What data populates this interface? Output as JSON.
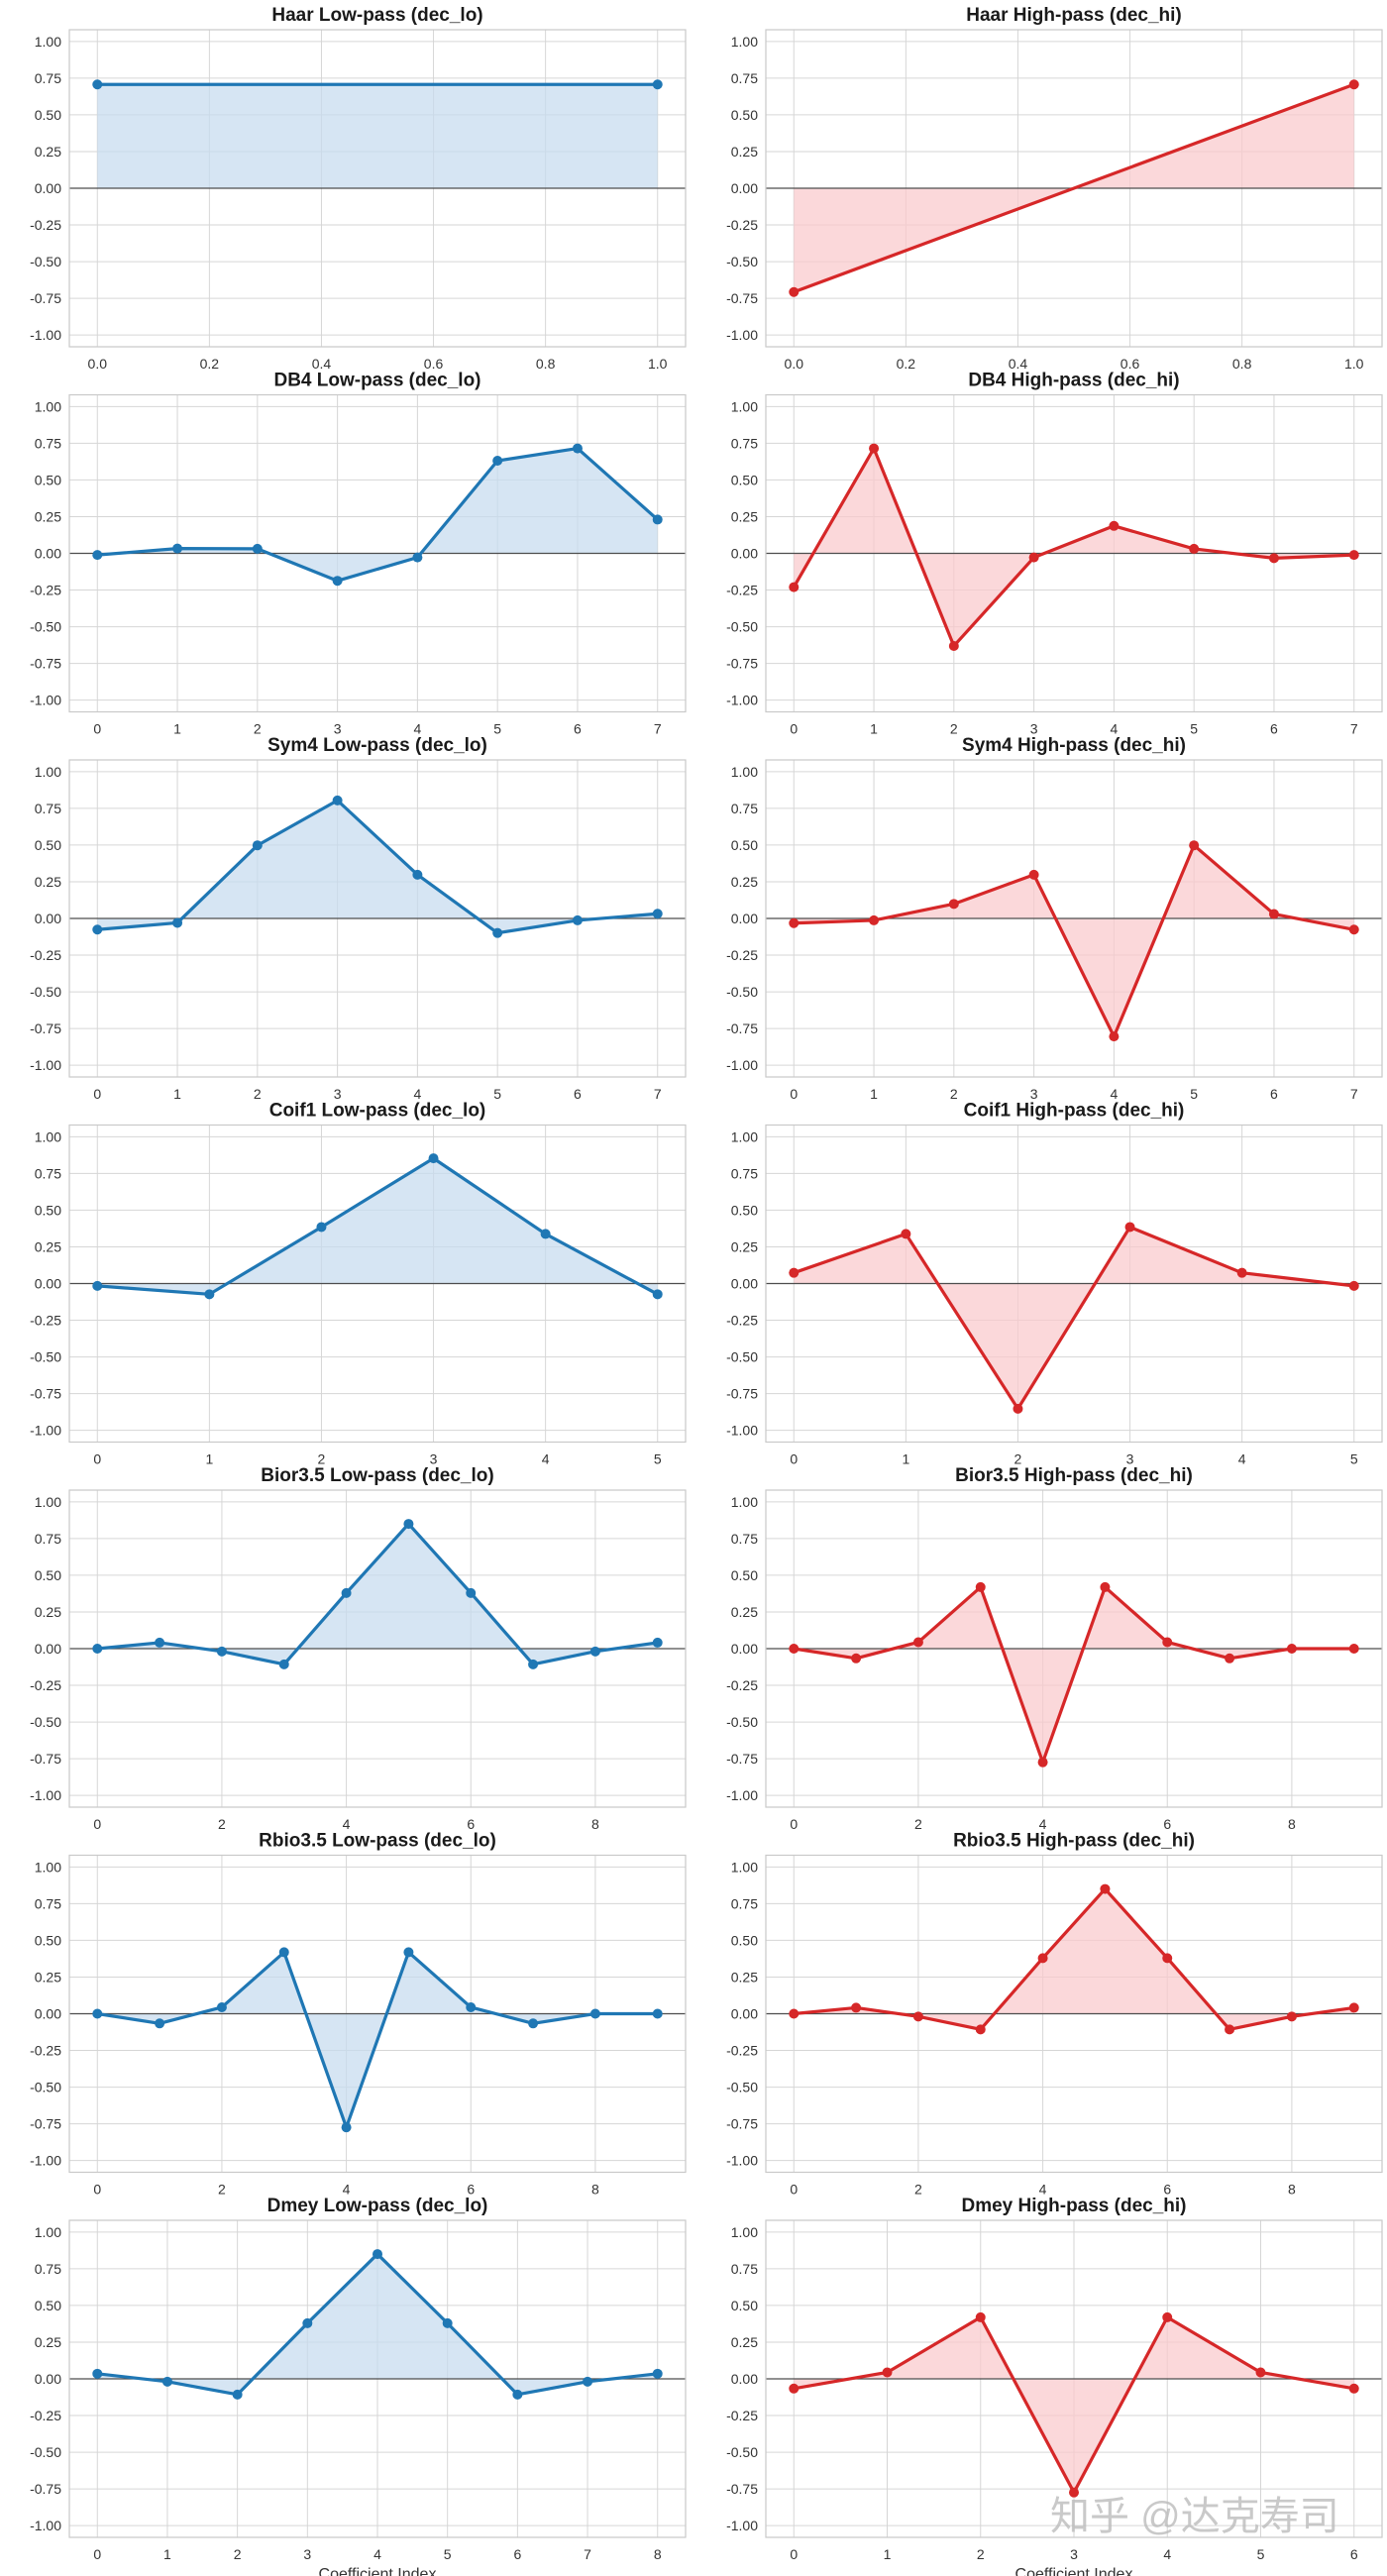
{
  "colors": {
    "low": "#1f77b4",
    "high": "#d62728",
    "lowFill": "#c6dbef",
    "highFill": "#f9c9cc",
    "grid": "#d6d6d6",
    "zero": "#4d4d4d",
    "frame": "#c9c9c9"
  },
  "watermark": "知乎 @达克寿司",
  "chart_data": [
    {
      "type": "line",
      "title": "Haar Low-pass (dec_lo)",
      "series": "low",
      "x": [
        0,
        1
      ],
      "values": [
        0.707,
        0.707
      ],
      "xticks": [
        0,
        0.2,
        0.4,
        0.6,
        0.8,
        1.0
      ],
      "xticklabels": [
        "0.0",
        "0.2",
        "0.4",
        "0.6",
        "0.8",
        "1.0"
      ],
      "xlim": [
        -0.05,
        1.05
      ],
      "ylim": [
        -1.08,
        1.08
      ],
      "yticks": [
        -1.0,
        -0.75,
        -0.5,
        -0.25,
        0.0,
        0.25,
        0.5,
        0.75,
        1.0
      ],
      "yticklabels": [
        "-1.00",
        "-0.75",
        "-0.50",
        "-0.25",
        "0.00",
        "0.25",
        "0.50",
        "0.75",
        "1.00"
      ],
      "xlabel": ""
    },
    {
      "type": "line",
      "title": "Haar High-pass (dec_hi)",
      "series": "high",
      "x": [
        0,
        1
      ],
      "values": [
        -0.707,
        0.707
      ],
      "xticks": [
        0,
        0.2,
        0.4,
        0.6,
        0.8,
        1.0
      ],
      "xticklabels": [
        "0.0",
        "0.2",
        "0.4",
        "0.6",
        "0.8",
        "1.0"
      ],
      "xlim": [
        -0.05,
        1.05
      ],
      "ylim": [
        -1.08,
        1.08
      ],
      "yticks": [
        -1.0,
        -0.75,
        -0.5,
        -0.25,
        0.0,
        0.25,
        0.5,
        0.75,
        1.0
      ],
      "yticklabels": [
        "-1.00",
        "-0.75",
        "-0.50",
        "-0.25",
        "0.00",
        "0.25",
        "0.50",
        "0.75",
        "1.00"
      ],
      "xlabel": ""
    },
    {
      "type": "line",
      "title": "DB4 Low-pass (dec_lo)",
      "series": "low",
      "x": [
        0,
        1,
        2,
        3,
        4,
        5,
        6,
        7
      ],
      "values": [
        -0.011,
        0.033,
        0.031,
        -0.187,
        -0.028,
        0.631,
        0.715,
        0.23
      ],
      "xticks": [
        0,
        1,
        2,
        3,
        4,
        5,
        6,
        7
      ],
      "xticklabels": [
        "0",
        "1",
        "2",
        "3",
        "4",
        "5",
        "6",
        "7"
      ],
      "xlim": [
        -0.35,
        7.35
      ],
      "ylim": [
        -1.08,
        1.08
      ],
      "yticks": [
        -1.0,
        -0.75,
        -0.5,
        -0.25,
        0.0,
        0.25,
        0.5,
        0.75,
        1.0
      ],
      "yticklabels": [
        "-1.00",
        "-0.75",
        "-0.50",
        "-0.25",
        "0.00",
        "0.25",
        "0.50",
        "0.75",
        "1.00"
      ],
      "xlabel": ""
    },
    {
      "type": "line",
      "title": "DB4 High-pass (dec_hi)",
      "series": "high",
      "x": [
        0,
        1,
        2,
        3,
        4,
        5,
        6,
        7
      ],
      "values": [
        -0.23,
        0.715,
        -0.631,
        -0.028,
        0.187,
        0.031,
        -0.033,
        -0.011
      ],
      "xticks": [
        0,
        1,
        2,
        3,
        4,
        5,
        6,
        7
      ],
      "xticklabels": [
        "0",
        "1",
        "2",
        "3",
        "4",
        "5",
        "6",
        "7"
      ],
      "xlim": [
        -0.35,
        7.35
      ],
      "ylim": [
        -1.08,
        1.08
      ],
      "yticks": [
        -1.0,
        -0.75,
        -0.5,
        -0.25,
        0.0,
        0.25,
        0.5,
        0.75,
        1.0
      ],
      "yticklabels": [
        "-1.00",
        "-0.75",
        "-0.50",
        "-0.25",
        "0.00",
        "0.25",
        "0.50",
        "0.75",
        "1.00"
      ],
      "xlabel": ""
    },
    {
      "type": "line",
      "title": "Sym4 Low-pass (dec_lo)",
      "series": "low",
      "x": [
        0,
        1,
        2,
        3,
        4,
        5,
        6,
        7
      ],
      "values": [
        -0.076,
        -0.03,
        0.498,
        0.804,
        0.298,
        -0.099,
        -0.013,
        0.032
      ],
      "xticks": [
        0,
        1,
        2,
        3,
        4,
        5,
        6,
        7
      ],
      "xticklabels": [
        "0",
        "1",
        "2",
        "3",
        "4",
        "5",
        "6",
        "7"
      ],
      "xlim": [
        -0.35,
        7.35
      ],
      "ylim": [
        -1.08,
        1.08
      ],
      "yticks": [
        -1.0,
        -0.75,
        -0.5,
        -0.25,
        0.0,
        0.25,
        0.5,
        0.75,
        1.0
      ],
      "yticklabels": [
        "-1.00",
        "-0.75",
        "-0.50",
        "-0.25",
        "0.00",
        "0.25",
        "0.50",
        "0.75",
        "1.00"
      ],
      "xlabel": ""
    },
    {
      "type": "line",
      "title": "Sym4 High-pass (dec_hi)",
      "series": "high",
      "x": [
        0,
        1,
        2,
        3,
        4,
        5,
        6,
        7
      ],
      "values": [
        -0.032,
        -0.013,
        0.099,
        0.298,
        -0.804,
        0.498,
        0.03,
        -0.076
      ],
      "xticks": [
        0,
        1,
        2,
        3,
        4,
        5,
        6,
        7
      ],
      "xticklabels": [
        "0",
        "1",
        "2",
        "3",
        "4",
        "5",
        "6",
        "7"
      ],
      "xlim": [
        -0.35,
        7.35
      ],
      "ylim": [
        -1.08,
        1.08
      ],
      "yticks": [
        -1.0,
        -0.75,
        -0.5,
        -0.25,
        0.0,
        0.25,
        0.5,
        0.75,
        1.0
      ],
      "yticklabels": [
        "-1.00",
        "-0.75",
        "-0.50",
        "-0.25",
        "0.00",
        "0.25",
        "0.50",
        "0.75",
        "1.00"
      ],
      "xlabel": ""
    },
    {
      "type": "line",
      "title": "Coif1 Low-pass (dec_lo)",
      "series": "low",
      "x": [
        0,
        1,
        2,
        3,
        4,
        5
      ],
      "values": [
        -0.016,
        -0.073,
        0.385,
        0.853,
        0.338,
        -0.073
      ],
      "xticks": [
        0,
        1,
        2,
        3,
        4,
        5
      ],
      "xticklabels": [
        "0",
        "1",
        "2",
        "3",
        "4",
        "5"
      ],
      "xlim": [
        -0.25,
        5.25
      ],
      "ylim": [
        -1.08,
        1.08
      ],
      "yticks": [
        -1.0,
        -0.75,
        -0.5,
        -0.25,
        0.0,
        0.25,
        0.5,
        0.75,
        1.0
      ],
      "yticklabels": [
        "-1.00",
        "-0.75",
        "-0.50",
        "-0.25",
        "0.00",
        "0.25",
        "0.50",
        "0.75",
        "1.00"
      ],
      "xlabel": ""
    },
    {
      "type": "line",
      "title": "Coif1 High-pass (dec_hi)",
      "series": "high",
      "x": [
        0,
        1,
        2,
        3,
        4,
        5
      ],
      "values": [
        0.073,
        0.338,
        -0.853,
        0.385,
        0.073,
        -0.016
      ],
      "xticks": [
        0,
        1,
        2,
        3,
        4,
        5
      ],
      "xticklabels": [
        "0",
        "1",
        "2",
        "3",
        "4",
        "5"
      ],
      "xlim": [
        -0.25,
        5.25
      ],
      "ylim": [
        -1.08,
        1.08
      ],
      "yticks": [
        -1.0,
        -0.75,
        -0.5,
        -0.25,
        0.0,
        0.25,
        0.5,
        0.75,
        1.0
      ],
      "yticklabels": [
        "-1.00",
        "-0.75",
        "-0.50",
        "-0.25",
        "0.00",
        "0.25",
        "0.50",
        "0.75",
        "1.00"
      ],
      "xlabel": ""
    },
    {
      "type": "line",
      "title": "Bior3.5 Low-pass (dec_lo)",
      "series": "low",
      "x": [
        0,
        1,
        2,
        3,
        4,
        5,
        6,
        7,
        8,
        9
      ],
      "values": [
        0.0,
        0.041,
        -0.019,
        -0.107,
        0.379,
        0.85,
        0.379,
        -0.107,
        -0.019,
        0.041
      ],
      "xticks": [
        0,
        2,
        4,
        6,
        8
      ],
      "xticklabels": [
        "0",
        "2",
        "4",
        "6",
        "8"
      ],
      "xlim": [
        -0.45,
        9.45
      ],
      "ylim": [
        -1.08,
        1.08
      ],
      "yticks": [
        -1.0,
        -0.75,
        -0.5,
        -0.25,
        0.0,
        0.25,
        0.5,
        0.75,
        1.0
      ],
      "yticklabels": [
        "-1.00",
        "-0.75",
        "-0.50",
        "-0.25",
        "0.00",
        "0.25",
        "0.50",
        "0.75",
        "1.00"
      ],
      "xlabel": ""
    },
    {
      "type": "line",
      "title": "Bior3.5 High-pass (dec_hi)",
      "series": "high",
      "x": [
        0,
        1,
        2,
        3,
        4,
        5,
        6,
        7,
        8,
        9
      ],
      "values": [
        0.0,
        -0.066,
        0.044,
        0.419,
        -0.774,
        0.419,
        0.044,
        -0.066,
        0.0,
        0.0
      ],
      "xticks": [
        0,
        2,
        4,
        6,
        8
      ],
      "xticklabels": [
        "0",
        "2",
        "4",
        "6",
        "8"
      ],
      "xlim": [
        -0.45,
        9.45
      ],
      "ylim": [
        -1.08,
        1.08
      ],
      "yticks": [
        -1.0,
        -0.75,
        -0.5,
        -0.25,
        0.0,
        0.25,
        0.5,
        0.75,
        1.0
      ],
      "yticklabels": [
        "-1.00",
        "-0.75",
        "-0.50",
        "-0.25",
        "0.00",
        "0.25",
        "0.50",
        "0.75",
        "1.00"
      ],
      "xlabel": ""
    },
    {
      "type": "line",
      "title": "Rbio3.5 Low-pass (dec_lo)",
      "series": "low",
      "x": [
        0,
        1,
        2,
        3,
        4,
        5,
        6,
        7,
        8,
        9
      ],
      "values": [
        0.0,
        -0.066,
        0.044,
        0.419,
        -0.774,
        0.419,
        0.044,
        -0.066,
        0.0,
        0.0
      ],
      "xticks": [
        0,
        2,
        4,
        6,
        8
      ],
      "xticklabels": [
        "0",
        "2",
        "4",
        "6",
        "8"
      ],
      "xlim": [
        -0.45,
        9.45
      ],
      "ylim": [
        -1.08,
        1.08
      ],
      "yticks": [
        -1.0,
        -0.75,
        -0.5,
        -0.25,
        0.0,
        0.25,
        0.5,
        0.75,
        1.0
      ],
      "yticklabels": [
        "-1.00",
        "-0.75",
        "-0.50",
        "-0.25",
        "0.00",
        "0.25",
        "0.50",
        "0.75",
        "1.00"
      ],
      "xlabel": ""
    },
    {
      "type": "line",
      "title": "Rbio3.5 High-pass (dec_hi)",
      "series": "high",
      "x": [
        0,
        1,
        2,
        3,
        4,
        5,
        6,
        7,
        8,
        9
      ],
      "values": [
        0.0,
        0.041,
        -0.019,
        -0.107,
        0.379,
        0.85,
        0.379,
        -0.107,
        -0.019,
        0.041
      ],
      "xticks": [
        0,
        2,
        4,
        6,
        8
      ],
      "xticklabels": [
        "0",
        "2",
        "4",
        "6",
        "8"
      ],
      "xlim": [
        -0.45,
        9.45
      ],
      "ylim": [
        -1.08,
        1.08
      ],
      "yticks": [
        -1.0,
        -0.75,
        -0.5,
        -0.25,
        0.0,
        0.25,
        0.5,
        0.75,
        1.0
      ],
      "yticklabels": [
        "-1.00",
        "-0.75",
        "-0.50",
        "-0.25",
        "0.00",
        "0.25",
        "0.50",
        "0.75",
        "1.00"
      ],
      "xlabel": ""
    },
    {
      "type": "line",
      "title": "Dmey Low-pass (dec_lo)",
      "series": "low",
      "x": [
        0,
        1,
        2,
        3,
        4,
        5,
        6,
        7,
        8
      ],
      "values": [
        0.035,
        -0.019,
        -0.107,
        0.379,
        0.85,
        0.379,
        -0.107,
        -0.019,
        0.035
      ],
      "xticks": [
        0,
        1,
        2,
        3,
        4,
        5,
        6,
        7,
        8
      ],
      "xticklabels": [
        "0",
        "1",
        "2",
        "3",
        "4",
        "5",
        "6",
        "7",
        "8"
      ],
      "xlim": [
        -0.4,
        8.4
      ],
      "ylim": [
        -1.08,
        1.08
      ],
      "yticks": [
        -1.0,
        -0.75,
        -0.5,
        -0.25,
        0.0,
        0.25,
        0.5,
        0.75,
        1.0
      ],
      "yticklabels": [
        "-1.00",
        "-0.75",
        "-0.50",
        "-0.25",
        "0.00",
        "0.25",
        "0.50",
        "0.75",
        "1.00"
      ],
      "xlabel": "Coefficient Index"
    },
    {
      "type": "line",
      "title": "Dmey High-pass (dec_hi)",
      "series": "high",
      "x": [
        0,
        1,
        2,
        3,
        4,
        5,
        6
      ],
      "values": [
        -0.066,
        0.044,
        0.419,
        -0.774,
        0.419,
        0.044,
        -0.066
      ],
      "xticks": [
        0,
        1,
        2,
        3,
        4,
        5,
        6
      ],
      "xticklabels": [
        "0",
        "1",
        "2",
        "3",
        "4",
        "5",
        "6"
      ],
      "xlim": [
        -0.3,
        6.3
      ],
      "ylim": [
        -1.08,
        1.08
      ],
      "yticks": [
        -1.0,
        -0.75,
        -0.5,
        -0.25,
        0.0,
        0.25,
        0.5,
        0.75,
        1.0
      ],
      "yticklabels": [
        "-1.00",
        "-0.75",
        "-0.50",
        "-0.25",
        "0.00",
        "0.25",
        "0.50",
        "0.75",
        "1.00"
      ],
      "xlabel": "Coefficient Index"
    }
  ]
}
